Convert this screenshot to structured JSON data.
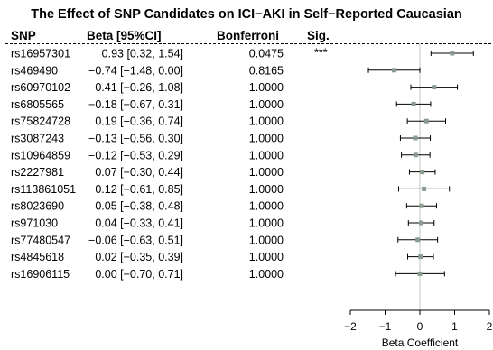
{
  "chart_data": {
    "type": "forest",
    "title": "The Effect of SNP Candidates on ICI−AKI in Self−Reported Caucasian",
    "columns": [
      "SNP",
      "Beta [95%CI]",
      "Bonferroni",
      "Sig."
    ],
    "rows": [
      {
        "snp": "rs16957301",
        "beta_ci": "0.93 [0.32, 1.54]",
        "bonferroni": "0.0475",
        "sig": "***",
        "beta": 0.93,
        "lo": 0.32,
        "hi": 1.54
      },
      {
        "snp": "rs469490",
        "beta_ci": "−0.74 [−1.48, 0.00]",
        "bonferroni": "0.8165",
        "sig": "",
        "beta": -0.74,
        "lo": -1.48,
        "hi": 0.0
      },
      {
        "snp": "rs60970102",
        "beta_ci": "0.41 [−0.26, 1.08]",
        "bonferroni": "1.0000",
        "sig": "",
        "beta": 0.41,
        "lo": -0.26,
        "hi": 1.08
      },
      {
        "snp": "rs6805565",
        "beta_ci": "−0.18 [−0.67, 0.31]",
        "bonferroni": "1.0000",
        "sig": "",
        "beta": -0.18,
        "lo": -0.67,
        "hi": 0.31
      },
      {
        "snp": "rs75824728",
        "beta_ci": "0.19 [−0.36, 0.74]",
        "bonferroni": "1.0000",
        "sig": "",
        "beta": 0.19,
        "lo": -0.36,
        "hi": 0.74
      },
      {
        "snp": "rs3087243",
        "beta_ci": "−0.13 [−0.56, 0.30]",
        "bonferroni": "1.0000",
        "sig": "",
        "beta": -0.13,
        "lo": -0.56,
        "hi": 0.3
      },
      {
        "snp": "rs10964859",
        "beta_ci": "−0.12 [−0.53, 0.29]",
        "bonferroni": "1.0000",
        "sig": "",
        "beta": -0.12,
        "lo": -0.53,
        "hi": 0.29
      },
      {
        "snp": "rs2227981",
        "beta_ci": "0.07 [−0.30, 0.44]",
        "bonferroni": "1.0000",
        "sig": "",
        "beta": 0.07,
        "lo": -0.3,
        "hi": 0.44
      },
      {
        "snp": "rs113861051",
        "beta_ci": "0.12 [−0.61, 0.85]",
        "bonferroni": "1.0000",
        "sig": "",
        "beta": 0.12,
        "lo": -0.61,
        "hi": 0.85
      },
      {
        "snp": "rs8023690",
        "beta_ci": "0.05 [−0.38, 0.48]",
        "bonferroni": "1.0000",
        "sig": "",
        "beta": 0.05,
        "lo": -0.38,
        "hi": 0.48
      },
      {
        "snp": "rs971030",
        "beta_ci": "0.04 [−0.33, 0.41]",
        "bonferroni": "1.0000",
        "sig": "",
        "beta": 0.04,
        "lo": -0.33,
        "hi": 0.41
      },
      {
        "snp": "rs77480547",
        "beta_ci": "−0.06 [−0.63, 0.51]",
        "bonferroni": "1.0000",
        "sig": "",
        "beta": -0.06,
        "lo": -0.63,
        "hi": 0.51
      },
      {
        "snp": "rs4845618",
        "beta_ci": "0.02 [−0.35, 0.39]",
        "bonferroni": "1.0000",
        "sig": "",
        "beta": 0.02,
        "lo": -0.35,
        "hi": 0.39
      },
      {
        "snp": "rs16906115",
        "beta_ci": "0.00 [−0.70, 0.71]",
        "bonferroni": "1.0000",
        "sig": "",
        "beta": 0.0,
        "lo": -0.7,
        "hi": 0.71
      }
    ],
    "xlabel": "Beta Coefficient",
    "xlim": [
      -2,
      2
    ],
    "xticks": [
      -2,
      -1,
      0,
      1,
      2
    ],
    "xtick_labels": [
      "−2",
      "−1",
      "0",
      "1",
      "2"
    ],
    "reference_line": 0,
    "colors": {
      "point": "#8a9b8f",
      "reference": "#c8d3ca",
      "line": "#000000"
    }
  }
}
